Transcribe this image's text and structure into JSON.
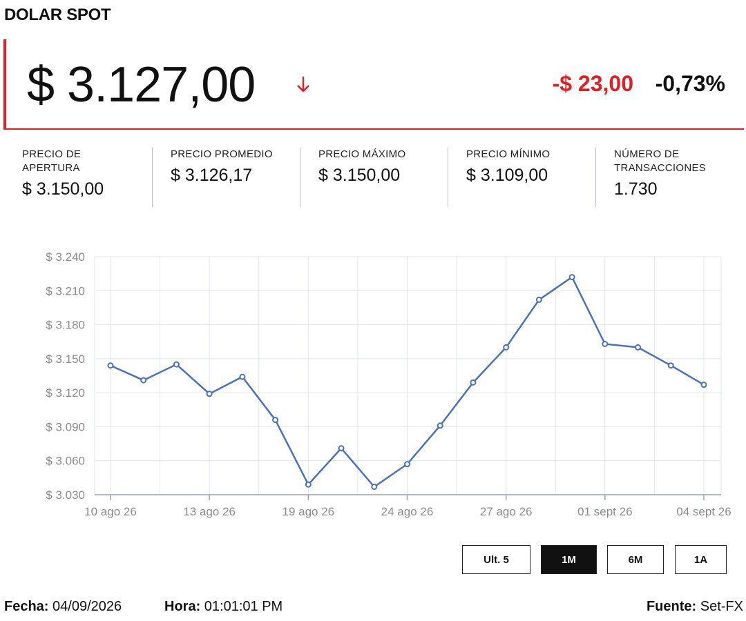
{
  "header": {
    "title": "DOLAR SPOT"
  },
  "price": {
    "current": "$ 3.127,00",
    "direction": "down",
    "change": "-$ 23,00",
    "change_pct": "-0,73%",
    "down_color": "#e31e24"
  },
  "stats": [
    {
      "label": "PRECIO DE APERTURA",
      "value": "$ 3.150,00"
    },
    {
      "label": "PRECIO PROMEDIO",
      "value": "$ 3.126,17"
    },
    {
      "label": "PRECIO MÁXIMO",
      "value": "$ 3.150,00"
    },
    {
      "label": "PRECIO MÍNIMO",
      "value": "$ 3.109,00"
    },
    {
      "label": "NÚMERO DE TRANSACCIONES",
      "value": "1.730"
    }
  ],
  "chart_data": {
    "type": "line",
    "title": "",
    "xlabel": "",
    "ylabel": "",
    "ylim": [
      3030,
      3240
    ],
    "yticks": [
      3030,
      3060,
      3090,
      3120,
      3150,
      3180,
      3210,
      3240
    ],
    "ytick_labels": [
      "$ 3.030",
      "$ 3.060",
      "$ 3.090",
      "$ 3.120",
      "$ 3.150",
      "$ 3.180",
      "$ 3.210",
      "$ 3.240"
    ],
    "xtick_labels": [
      "10 ago 26",
      "13 ago 26",
      "19 ago 26",
      "24 ago 26",
      "27 ago 26",
      "01 sept 26",
      "04 sept 26"
    ],
    "xtick_point_index": [
      0,
      3,
      6,
      9,
      12,
      15,
      18
    ],
    "grid": true,
    "legend": "none",
    "line_color": "#4a72b8",
    "series": [
      {
        "values": [
          3144,
          3131,
          3145,
          3119,
          3134,
          3096,
          3039,
          3071,
          3037,
          3057,
          3091,
          3129,
          3160,
          3202,
          3222,
          3163,
          3160,
          3144,
          3127
        ]
      }
    ]
  },
  "range_buttons": [
    {
      "label": "Ult. 5",
      "active": false
    },
    {
      "label": "1M",
      "active": true
    },
    {
      "label": "6M",
      "active": false
    },
    {
      "label": "1A",
      "active": false
    }
  ],
  "footer": {
    "fecha_label": "Fecha:",
    "fecha_value": "04/09/2026",
    "hora_label": "Hora:",
    "hora_value": "01:01:01 PM",
    "fuente_label": "Fuente:",
    "fuente_value": "Set-FX"
  }
}
